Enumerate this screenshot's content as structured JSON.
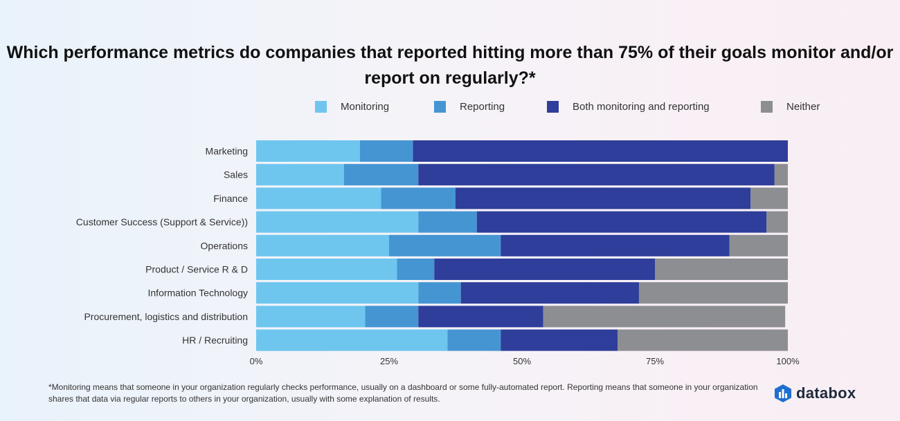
{
  "chart_data": {
    "type": "bar",
    "orientation": "horizontal",
    "stacked": true,
    "title": "Which performance metrics do companies that reported hitting more than 75% of their goals monitor and/or report on regularly?*",
    "categories": [
      "Marketing",
      "Sales",
      "Finance",
      "Customer Success (Support & Service))",
      "Operations",
      "Product / Service R & D",
      "Information Technology",
      "Procurement, logistics and distribution",
      "HR / Recruiting"
    ],
    "series": [
      {
        "name": "Monitoring",
        "color": "#6ec6ef",
        "values": [
          19.5,
          16.5,
          23.5,
          30.5,
          25,
          26.5,
          30.5,
          20.5,
          36
        ]
      },
      {
        "name": "Reporting",
        "color": "#4595d3",
        "values": [
          10,
          14,
          14,
          11,
          21,
          7,
          8,
          10,
          10
        ]
      },
      {
        "name": "Both monitoring and reporting",
        "color": "#2e3e9a",
        "values": [
          70.5,
          67,
          55.5,
          54.5,
          43,
          41.5,
          33.5,
          23.5,
          22
        ]
      },
      {
        "name": "Neither",
        "color": "#8d8e92",
        "values": [
          0,
          2.5,
          7,
          4,
          11,
          25,
          28,
          45.5,
          32
        ]
      }
    ],
    "xlim": [
      0,
      100
    ],
    "xticks": [
      "0%",
      "25%",
      "50%",
      "75%",
      "100%"
    ],
    "xlabel": "",
    "ylabel": "",
    "legend_position": "top",
    "grid": false
  },
  "footnote": "*Monitoring means that someone in your organization regularly checks performance, usually on a dashboard or some fully-automated report. Reporting means that someone in your organization shares that data via regular reports to others in your organization, usually with some explanation of results.",
  "brand": {
    "name": "databox",
    "icon": "databox-logo-icon",
    "color": "#1f6fd0"
  }
}
